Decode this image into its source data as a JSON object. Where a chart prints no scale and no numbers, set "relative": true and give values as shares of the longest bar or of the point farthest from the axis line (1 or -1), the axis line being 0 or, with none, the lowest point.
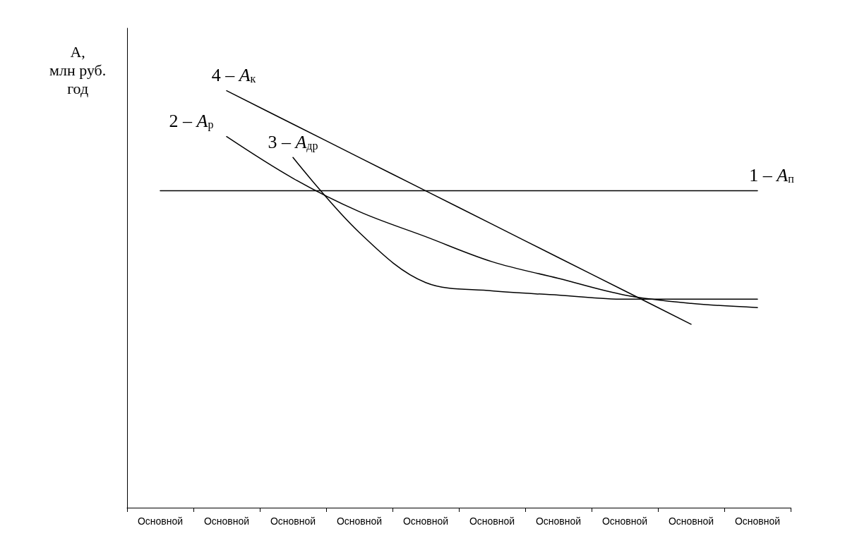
{
  "chart_data": {
    "type": "line",
    "relative": true,
    "ylabel": "А, млн руб. год",
    "categories": [
      "Основной",
      "Основной",
      "Основной",
      "Основной",
      "Основной",
      "Основной",
      "Основной",
      "Основной",
      "Основной",
      "Основной"
    ],
    "series": [
      {
        "name": "1 – A$_{п}$",
        "color": "#000000",
        "values": [
          0.76,
          0.76,
          0.76,
          0.76,
          0.76,
          0.76,
          0.76,
          0.76,
          0.76,
          0.76
        ]
      },
      {
        "name": "2 – A$_{р}$",
        "color": "#000000",
        "values": [
          null,
          0.89,
          0.79,
          0.71,
          0.65,
          0.59,
          0.55,
          0.51,
          0.49,
          0.48
        ]
      },
      {
        "name": "3 – A$_{др}$",
        "color": "#000000",
        "values": [
          null,
          null,
          0.84,
          0.66,
          0.54,
          0.52,
          0.51,
          0.5,
          0.5,
          0.5
        ]
      },
      {
        "name": "4 – A$_{к}$",
        "color": "#000000",
        "values": [
          null,
          1,
          0.92,
          0.84,
          0.76,
          0.68,
          0.6,
          0.52,
          0.44,
          null
        ]
      }
    ],
    "grid": false,
    "marker": "none",
    "line_style": "solid"
  }
}
